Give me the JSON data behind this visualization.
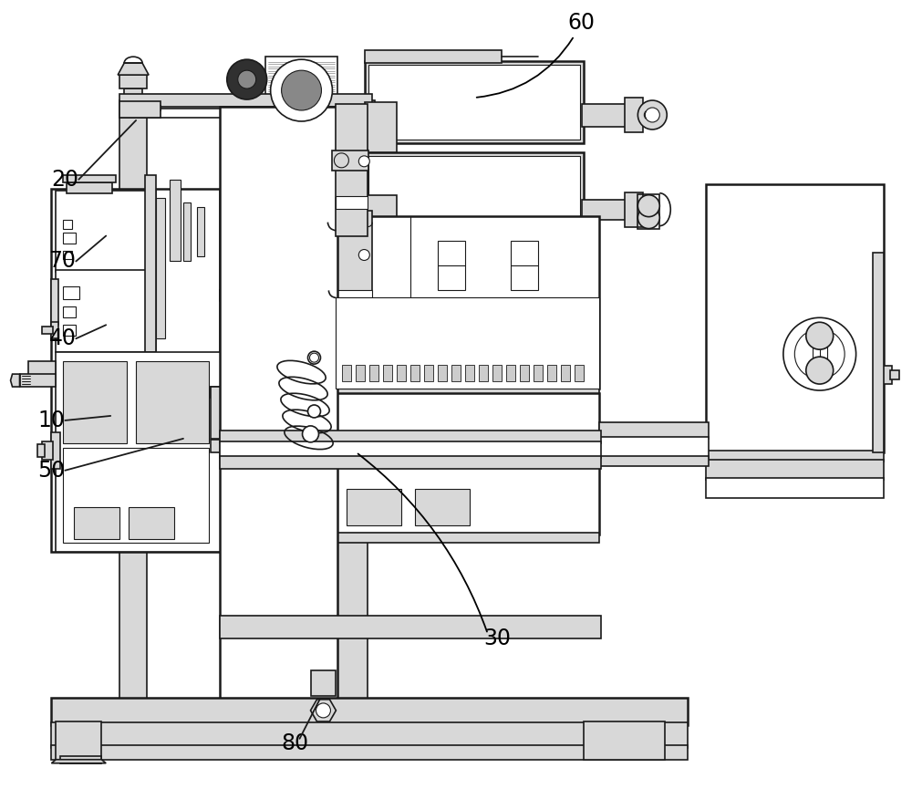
{
  "background_color": "#ffffff",
  "fig_width": 10.0,
  "fig_height": 8.76,
  "dpi": 100,
  "label_fontsize": 17,
  "line_color": "#1a1a1a",
  "lw_thin": 0.8,
  "lw_med": 1.2,
  "lw_thick": 1.8,
  "gray_light": "#d8d8d8",
  "gray_med": "#b0b0b0",
  "gray_dark": "#888888"
}
